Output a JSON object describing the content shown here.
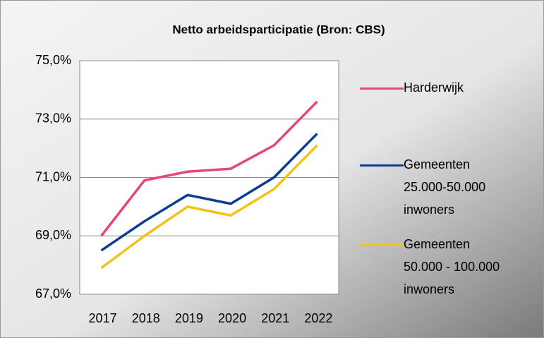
{
  "chart_data": {
    "type": "line",
    "title": "Netto arbeidsparticipatie (Bron: CBS)",
    "categories": [
      "2017",
      "2018",
      "2019",
      "2020",
      "2021",
      "2022"
    ],
    "series": [
      {
        "name": "Harderwijk",
        "color": "#e8457a",
        "values": [
          69.0,
          70.9,
          71.2,
          71.3,
          72.1,
          73.6
        ]
      },
      {
        "name": "Gemeenten 25.000-50.000 inwoners",
        "color": "#0b3d91",
        "values": [
          68.5,
          69.5,
          70.4,
          70.1,
          71.0,
          72.5
        ]
      },
      {
        "name": "Gemeenten 50.000 - 100.000 inwoners",
        "color": "#f2c418",
        "values": [
          67.9,
          69.0,
          70.0,
          69.7,
          70.6,
          72.1
        ]
      }
    ],
    "ylim": [
      67,
      75
    ],
    "yticks": [
      {
        "value": 67,
        "label": "67,0%"
      },
      {
        "value": 69,
        "label": "69,0%"
      },
      {
        "value": 71,
        "label": "71,0%"
      },
      {
        "value": 73,
        "label": "73,0%"
      },
      {
        "value": 75,
        "label": "75,0%"
      }
    ],
    "grid": true,
    "legend": "right"
  }
}
